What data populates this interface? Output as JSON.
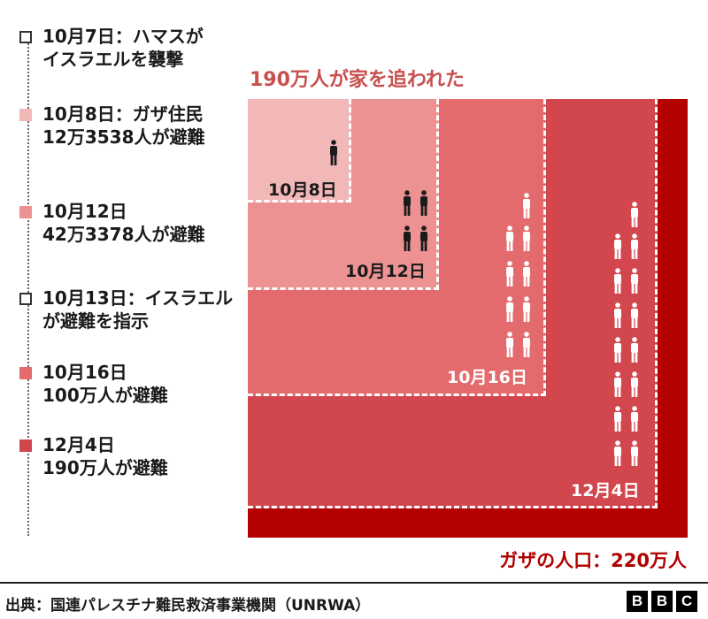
{
  "legend": [
    {
      "line1": "10月7日：ハマスが",
      "line2": "イスラエルを襲撃",
      "color": "#ffffff"
    },
    {
      "line1": "10月8日：ガザ住民",
      "line2": "12万3538人が避難",
      "color": "#f2b8b8"
    },
    {
      "line1": "10月12日",
      "line2": "42万3378人が避難",
      "color": "#ec9293"
    },
    {
      "line1": "10月13日：イスラエル",
      "line2": "が避難を指示",
      "color": "#ffffff"
    },
    {
      "line1": "10月16日",
      "line2": "100万人が避難",
      "color": "#e36b6d"
    },
    {
      "line1": "12月4日",
      "line2": "190万人が避難",
      "color": "#d2464d"
    }
  ],
  "headline": "190万人が家を追われた",
  "boxes": [
    {
      "label": "10月8日",
      "color": "#f2b8b8"
    },
    {
      "label": "10月12日",
      "color": "#ec9293"
    },
    {
      "label": "10月16日",
      "color": "#e36b6d"
    },
    {
      "label": "12月4日",
      "color": "#d2464d"
    }
  ],
  "population_label": "ガザの人口：220万人",
  "population_color": "#b30000",
  "source": "出典：国連パレスチナ難民救済事業機関（UNRWA）",
  "logo": [
    "B",
    "B",
    "C"
  ],
  "icons": {
    "person": "person-icon"
  }
}
